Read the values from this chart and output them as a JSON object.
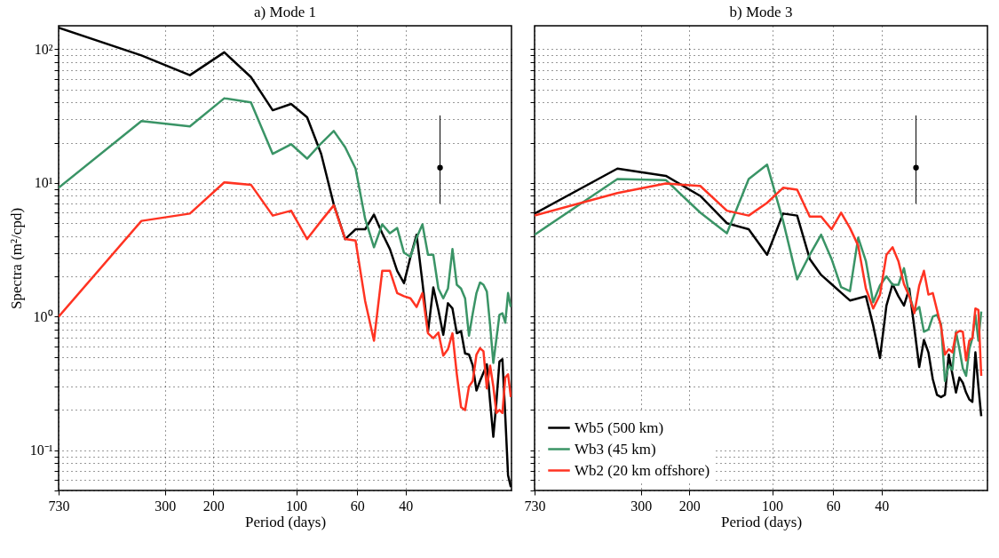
{
  "chart_data": [
    {
      "type": "line",
      "title": "a) Mode 1",
      "xlabel": "Period (days)",
      "ylabel": "Spectra (m²/cpd)",
      "log": "xy",
      "grid": true,
      "legend": false,
      "xlim": [
        730,
        16.5
      ],
      "ylim": [
        0.05,
        150
      ],
      "xticks": [
        730,
        300,
        200,
        100,
        60,
        40
      ],
      "yticks": [
        {
          "value": 0.05,
          "label": null
        },
        {
          "value": 0.06,
          "label": null
        },
        {
          "value": 0.07,
          "label": null
        },
        {
          "value": 0.08,
          "label": null
        },
        {
          "value": 0.09,
          "label": null
        },
        {
          "value": 0.1,
          "label": "10⁻¹"
        },
        {
          "value": 0.2,
          "label": null
        },
        {
          "value": 0.3,
          "label": null
        },
        {
          "value": 0.4,
          "label": null
        },
        {
          "value": 0.5,
          "label": null
        },
        {
          "value": 0.6,
          "label": null
        },
        {
          "value": 0.7,
          "label": null
        },
        {
          "value": 0.8,
          "label": null
        },
        {
          "value": 0.9,
          "label": null
        },
        {
          "value": 1,
          "label": "10⁰"
        },
        {
          "value": 2,
          "label": null
        },
        {
          "value": 3,
          "label": null
        },
        {
          "value": 4,
          "label": null
        },
        {
          "value": 5,
          "label": null
        },
        {
          "value": 6,
          "label": null
        },
        {
          "value": 7,
          "label": null
        },
        {
          "value": 8,
          "label": null
        },
        {
          "value": 9,
          "label": null
        },
        {
          "value": 10,
          "label": "10¹"
        },
        {
          "value": 20,
          "label": null
        },
        {
          "value": 30,
          "label": null
        },
        {
          "value": 40,
          "label": null
        },
        {
          "value": 50,
          "label": null
        },
        {
          "value": 60,
          "label": null
        },
        {
          "value": 70,
          "label": null
        },
        {
          "value": 80,
          "label": null
        },
        {
          "value": 90,
          "label": null
        },
        {
          "value": 100,
          "label": "10²"
        }
      ],
      "x": [
        730,
        365,
        243.33,
        182.5,
        146,
        121.67,
        104.29,
        91.25,
        81.11,
        73,
        66.36,
        60.83,
        56.15,
        52.14,
        48.67,
        45.63,
        42.94,
        40.56,
        38.42,
        36.5,
        34.76,
        33.18,
        31.74,
        30.42,
        29.2,
        28.08,
        27.04,
        26.07,
        25.17,
        24.33,
        23.55,
        22.81,
        22.12,
        21.47,
        20.86,
        20.28,
        19.73,
        19.21,
        18.72,
        18.25,
        17.8,
        17.38,
        16.98,
        16.59
      ],
      "series": [
        {
          "color": "#000000",
          "values": [
            145,
            90,
            64,
            95,
            62,
            35,
            39,
            31,
            16.5,
            6.9,
            3.8,
            4.5,
            4.5,
            5.8,
            4.2,
            3.2,
            2.2,
            1.78,
            2.8,
            4.1,
            1.8,
            0.77,
            1.65,
            1.12,
            0.73,
            1.26,
            1.15,
            0.75,
            0.78,
            0.53,
            0.52,
            0.43,
            0.28,
            0.33,
            0.38,
            0.44,
            0.23,
            0.126,
            0.23,
            0.46,
            0.48,
            0.18,
            0.065,
            0.053
          ]
        },
        {
          "color": "#3a9466",
          "values": [
            9.2,
            29,
            26.5,
            43,
            40,
            16.5,
            19.5,
            15.2,
            19.8,
            24.5,
            18.5,
            12.8,
            5.4,
            3.3,
            4.9,
            4.2,
            4.6,
            3.0,
            2.8,
            3.9,
            4.9,
            2.9,
            2.9,
            1.62,
            1.37,
            1.62,
            3.2,
            1.73,
            1.62,
            1.37,
            0.72,
            1.06,
            1.5,
            1.8,
            1.73,
            1.54,
            0.86,
            0.45,
            0.68,
            1.03,
            1.06,
            0.9,
            1.5,
            1.18
          ]
        },
        {
          "color": "#ff3322",
          "values": [
            1.0,
            5.2,
            5.9,
            10.1,
            9.7,
            5.7,
            6.2,
            3.8,
            5.2,
            6.8,
            3.8,
            3.7,
            1.31,
            0.66,
            2.2,
            2.2,
            1.5,
            1.42,
            1.37,
            1.18,
            1.5,
            0.75,
            0.69,
            0.76,
            0.51,
            0.57,
            0.75,
            0.37,
            0.21,
            0.2,
            0.3,
            0.33,
            0.52,
            0.58,
            0.55,
            0.29,
            0.43,
            0.3,
            0.19,
            0.2,
            0.19,
            0.35,
            0.37,
            0.25
          ]
        },
        {
          "type": "scatter",
          "color": "#000000",
          "x": [
            30
          ],
          "values": [
            13
          ],
          "errors": [
            [
              7,
              32
            ]
          ]
        }
      ]
    },
    {
      "type": "line",
      "title": "b) Mode 3",
      "xlabel": "Period (days)",
      "log": "xy",
      "grid": true,
      "legend": "bottom left",
      "tick_labels": "x",
      "xlim": [
        730,
        16.5
      ],
      "ylim": [
        0.05,
        150
      ],
      "xticks": [
        730,
        300,
        200,
        100,
        60,
        40
      ],
      "yticks": [
        {
          "value": 0.05,
          "label": null
        },
        {
          "value": 0.06,
          "label": null
        },
        {
          "value": 0.07,
          "label": null
        },
        {
          "value": 0.08,
          "label": null
        },
        {
          "value": 0.09,
          "label": null
        },
        {
          "value": 0.1,
          "label": null
        },
        {
          "value": 0.2,
          "label": null
        },
        {
          "value": 0.3,
          "label": null
        },
        {
          "value": 0.4,
          "label": null
        },
        {
          "value": 0.5,
          "label": null
        },
        {
          "value": 0.6,
          "label": null
        },
        {
          "value": 0.7,
          "label": null
        },
        {
          "value": 0.8,
          "label": null
        },
        {
          "value": 0.9,
          "label": null
        },
        {
          "value": 1,
          "label": null
        },
        {
          "value": 2,
          "label": null
        },
        {
          "value": 3,
          "label": null
        },
        {
          "value": 4,
          "label": null
        },
        {
          "value": 5,
          "label": null
        },
        {
          "value": 6,
          "label": null
        },
        {
          "value": 7,
          "label": null
        },
        {
          "value": 8,
          "label": null
        },
        {
          "value": 9,
          "label": null
        },
        {
          "value": 10,
          "label": null
        },
        {
          "value": 20,
          "label": null
        },
        {
          "value": 30,
          "label": null
        },
        {
          "value": 40,
          "label": null
        },
        {
          "value": 50,
          "label": null
        },
        {
          "value": 60,
          "label": null
        },
        {
          "value": 70,
          "label": null
        },
        {
          "value": 80,
          "label": null
        },
        {
          "value": 90,
          "label": null
        },
        {
          "value": 100,
          "label": null
        }
      ],
      "x": [
        730,
        365,
        243.33,
        182.5,
        146,
        121.67,
        104.29,
        91.25,
        81.11,
        73,
        66.36,
        60.83,
        56.15,
        52.14,
        48.67,
        45.63,
        42.94,
        40.56,
        38.42,
        36.5,
        34.76,
        33.18,
        31.74,
        30.42,
        29.2,
        28.08,
        27.04,
        26.07,
        25.17,
        24.33,
        23.55,
        22.81,
        22.12,
        21.47,
        20.86,
        20.28,
        19.73,
        19.21,
        18.72,
        18.25,
        17.8,
        17.38
      ],
      "series": [
        {
          "name": "Wb5 (500 km)",
          "color": "#000000",
          "values": [
            5.9,
            12.8,
            11.3,
            8.0,
            5.0,
            4.5,
            2.9,
            5.9,
            5.7,
            2.7,
            2.05,
            1.75,
            1.51,
            1.32,
            1.37,
            1.42,
            0.86,
            0.49,
            1.21,
            1.75,
            1.42,
            1.21,
            1.62,
            0.82,
            0.42,
            0.67,
            0.54,
            0.34,
            0.26,
            0.25,
            0.26,
            0.52,
            0.37,
            0.27,
            0.35,
            0.32,
            0.27,
            0.24,
            0.23,
            0.54,
            0.3,
            0.18
          ]
        },
        {
          "name": "Wb3 (45 km)",
          "color": "#3a9466",
          "values": [
            4.1,
            10.7,
            10.5,
            6.0,
            4.2,
            10.7,
            13.7,
            5.2,
            1.9,
            2.9,
            4.1,
            2.7,
            1.66,
            1.55,
            3.9,
            2.6,
            1.28,
            1.71,
            2.0,
            1.73,
            1.73,
            2.3,
            1.46,
            1.09,
            1.18,
            0.77,
            0.8,
            1.0,
            1.03,
            0.88,
            0.33,
            0.43,
            0.4,
            0.77,
            0.57,
            0.41,
            0.36,
            0.57,
            0.69,
            1.03,
            0.66,
            1.09
          ]
        },
        {
          "name": "Wb2 (20 km offshore)",
          "color": "#ff3322",
          "values": [
            5.7,
            8.4,
            9.9,
            9.5,
            6.2,
            5.7,
            7.1,
            9.2,
            8.9,
            5.6,
            5.6,
            4.5,
            6.0,
            4.6,
            3.4,
            1.62,
            1.15,
            1.46,
            2.9,
            3.3,
            2.6,
            1.75,
            1.42,
            1.06,
            1.71,
            2.2,
            1.46,
            1.5,
            1.12,
            0.84,
            0.52,
            0.57,
            0.54,
            0.75,
            0.78,
            0.77,
            0.47,
            0.66,
            0.69,
            1.15,
            1.12,
            0.36
          ]
        },
        {
          "type": "scatter",
          "color": "#000000",
          "x": [
            30
          ],
          "values": [
            13
          ],
          "errors": [
            [
              7,
              32
            ]
          ]
        }
      ]
    }
  ]
}
